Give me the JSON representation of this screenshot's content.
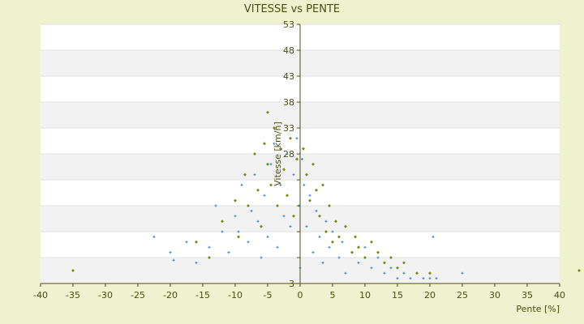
{
  "chart_data": {
    "type": "scatter",
    "title": "VITESSE vs PENTE",
    "xlabel": "Pente [%]",
    "ylabel": "Vitesse [km/h]",
    "xlim": [
      -40,
      40
    ],
    "ylim": [
      3,
      53
    ],
    "x_ticks": [
      -40,
      -35,
      -30,
      -25,
      -20,
      -15,
      -10,
      -5,
      0,
      5,
      10,
      15,
      20,
      25,
      30,
      35,
      40
    ],
    "y_ticks": [
      3,
      8,
      13,
      18,
      23,
      28,
      33,
      38,
      43,
      48,
      53
    ],
    "y_tick_labels": [
      "3",
      "",
      "",
      "",
      "",
      "28",
      "33",
      "38",
      "43",
      "48",
      "53"
    ],
    "grid": "horizontal bands",
    "series": [
      {
        "color": "#3b86d0",
        "marker": "+",
        "points": [
          [
            -22.5,
            12
          ],
          [
            -20,
            9
          ],
          [
            -19.5,
            7.5
          ],
          [
            -17.5,
            11
          ],
          [
            -16,
            7
          ],
          [
            -14,
            10
          ],
          [
            -13,
            18
          ],
          [
            -12,
            13
          ],
          [
            -11,
            9
          ],
          [
            -10,
            16
          ],
          [
            -9.5,
            13
          ],
          [
            -9,
            22
          ],
          [
            -8,
            11
          ],
          [
            -7.5,
            17
          ],
          [
            -7,
            24
          ],
          [
            -6.5,
            15
          ],
          [
            -6,
            8
          ],
          [
            -5.5,
            20
          ],
          [
            -5,
            12
          ],
          [
            -4.5,
            26
          ],
          [
            -4,
            30
          ],
          [
            -3.5,
            10
          ],
          [
            -3,
            22
          ],
          [
            -2.5,
            16
          ],
          [
            -2,
            28
          ],
          [
            -1.5,
            14
          ],
          [
            -1,
            24
          ],
          [
            -0.5,
            31
          ],
          [
            -0.2,
            18
          ],
          [
            0,
            6
          ],
          [
            0.3,
            27
          ],
          [
            0.6,
            22
          ],
          [
            1,
            14
          ],
          [
            1.5,
            20
          ],
          [
            2,
            9
          ],
          [
            2.5,
            17
          ],
          [
            3,
            12
          ],
          [
            3.5,
            7
          ],
          [
            4,
            15
          ],
          [
            4.5,
            10
          ],
          [
            5,
            13
          ],
          [
            6,
            8
          ],
          [
            6.5,
            11
          ],
          [
            7,
            5
          ],
          [
            8,
            9
          ],
          [
            9,
            7
          ],
          [
            10,
            10
          ],
          [
            11,
            6
          ],
          [
            12,
            8
          ],
          [
            13,
            5
          ],
          [
            14,
            6
          ],
          [
            15,
            4
          ],
          [
            16,
            5
          ],
          [
            17,
            4
          ],
          [
            18,
            5
          ],
          [
            19,
            4
          ],
          [
            20,
            4
          ],
          [
            20.5,
            12
          ],
          [
            21,
            4
          ],
          [
            25,
            5
          ]
        ]
      },
      {
        "color": "#7c8a14",
        "marker": "diamond",
        "points": [
          [
            -35,
            5.5
          ],
          [
            -16,
            11
          ],
          [
            -14,
            8
          ],
          [
            -12,
            15
          ],
          [
            -10,
            19
          ],
          [
            -9.5,
            12
          ],
          [
            -8.5,
            24
          ],
          [
            -8,
            18
          ],
          [
            -7,
            28
          ],
          [
            -6.5,
            21
          ],
          [
            -6,
            14
          ],
          [
            -5.5,
            30
          ],
          [
            -5,
            26
          ],
          [
            -5,
            36
          ],
          [
            -4.5,
            22
          ],
          [
            -4,
            33
          ],
          [
            -3.5,
            18
          ],
          [
            -3,
            29
          ],
          [
            -2.5,
            25
          ],
          [
            -2,
            20
          ],
          [
            -1.5,
            31
          ],
          [
            -1,
            16
          ],
          [
            -0.5,
            27
          ],
          [
            0.5,
            29
          ],
          [
            1,
            24
          ],
          [
            1.5,
            19
          ],
          [
            2,
            26
          ],
          [
            2.5,
            21
          ],
          [
            3,
            16
          ],
          [
            3.5,
            22
          ],
          [
            4,
            13
          ],
          [
            4.5,
            18
          ],
          [
            5,
            11
          ],
          [
            5.5,
            15
          ],
          [
            6,
            12
          ],
          [
            7,
            14
          ],
          [
            8,
            9
          ],
          [
            8.5,
            12
          ],
          [
            9,
            10
          ],
          [
            10,
            8
          ],
          [
            11,
            11
          ],
          [
            12,
            9
          ],
          [
            13,
            7
          ],
          [
            14,
            8
          ],
          [
            15,
            6
          ],
          [
            16,
            7
          ],
          [
            18,
            5
          ],
          [
            20,
            5
          ],
          [
            43,
            5.5
          ]
        ]
      }
    ]
  }
}
